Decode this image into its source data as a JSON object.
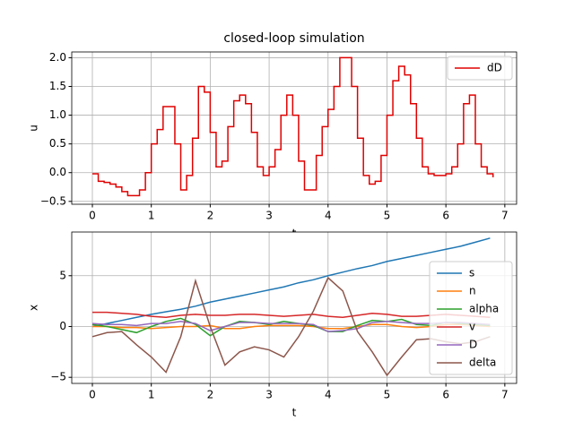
{
  "chart_data": [
    {
      "type": "line",
      "title": "closed-loop simulation",
      "xlabel": "t",
      "ylabel": "u",
      "step": "post",
      "grid": true,
      "legend": "upper right",
      "xlim": [
        -0.35,
        7.2
      ],
      "xticks": [
        0,
        1,
        2,
        3,
        4,
        5,
        6,
        7
      ],
      "ylim": [
        -0.55,
        2.1
      ],
      "yticks": [
        {
          "value": -0.5,
          "label": "−0.5"
        },
        {
          "value": 0,
          "label": "0.0"
        },
        {
          "value": 0.5,
          "label": "0.5"
        },
        {
          "value": 1,
          "label": "1.0"
        },
        {
          "value": 1.5,
          "label": "1.5"
        },
        {
          "value": 2,
          "label": "2.0"
        }
      ],
      "x": [
        0,
        0.1,
        0.2,
        0.3,
        0.4,
        0.5,
        0.6,
        0.7,
        0.8,
        0.9,
        1.0,
        1.1,
        1.2,
        1.3,
        1.4,
        1.5,
        1.6,
        1.7,
        1.8,
        1.9,
        2.0,
        2.1,
        2.2,
        2.3,
        2.4,
        2.5,
        2.6,
        2.7,
        2.8,
        2.9,
        3.0,
        3.1,
        3.2,
        3.3,
        3.4,
        3.5,
        3.6,
        3.7,
        3.8,
        3.9,
        4.0,
        4.1,
        4.2,
        4.3,
        4.4,
        4.5,
        4.6,
        4.7,
        4.8,
        4.9,
        5.0,
        5.1,
        5.2,
        5.3,
        5.4,
        5.5,
        5.6,
        5.7,
        5.8,
        5.9,
        6.0,
        6.1,
        6.2,
        6.3,
        6.4,
        6.5,
        6.6,
        6.7,
        6.8
      ],
      "series": [
        {
          "name": "dD",
          "color": "#e00000",
          "values": [
            -0.02,
            -0.15,
            -0.17,
            -0.2,
            -0.25,
            -0.33,
            -0.4,
            -0.4,
            -0.3,
            0.0,
            0.5,
            0.75,
            1.15,
            1.15,
            0.5,
            -0.3,
            -0.05,
            0.6,
            1.5,
            1.4,
            0.7,
            0.1,
            0.2,
            0.8,
            1.25,
            1.35,
            1.2,
            0.7,
            0.1,
            -0.05,
            0.1,
            0.4,
            1.0,
            1.35,
            1.0,
            0.2,
            -0.3,
            -0.3,
            0.3,
            0.8,
            1.1,
            1.5,
            2.0,
            2.0,
            1.5,
            0.6,
            -0.05,
            -0.2,
            -0.15,
            0.3,
            1.0,
            1.6,
            1.85,
            1.7,
            1.2,
            0.6,
            0.1,
            -0.02,
            -0.05,
            -0.05,
            -0.02,
            0.1,
            0.5,
            1.2,
            1.35,
            0.5,
            0.1,
            -0.02,
            -0.08
          ]
        }
      ]
    },
    {
      "type": "line",
      "xlabel": "t",
      "ylabel": "x",
      "grid": true,
      "legend": "lower right",
      "xlim": [
        -0.35,
        7.2
      ],
      "xticks": [
        0,
        1,
        2,
        3,
        4,
        5,
        6,
        7
      ],
      "ylim": [
        -5.6,
        9.3
      ],
      "yticks": [
        {
          "value": -5,
          "label": "−5"
        },
        0,
        5
      ],
      "x": [
        0,
        0.25,
        0.5,
        0.75,
        1.0,
        1.25,
        1.5,
        1.75,
        2.0,
        2.25,
        2.5,
        2.75,
        3.0,
        3.25,
        3.5,
        3.75,
        4.0,
        4.25,
        4.5,
        4.75,
        5.0,
        5.25,
        5.5,
        5.75,
        6.0,
        6.25,
        6.5,
        6.75
      ],
      "series": [
        {
          "name": "s",
          "color": "#1f77b4",
          "values": [
            0,
            0.3,
            0.6,
            0.9,
            1.2,
            1.45,
            1.7,
            2.0,
            2.4,
            2.7,
            3.0,
            3.3,
            3.6,
            3.9,
            4.3,
            4.6,
            5.0,
            5.35,
            5.7,
            6.0,
            6.4,
            6.7,
            7.0,
            7.3,
            7.6,
            7.9,
            8.3,
            8.7
          ]
        },
        {
          "name": "n",
          "color": "#ff7f0e",
          "values": [
            0,
            0,
            -0.1,
            -0.1,
            -0.2,
            -0.1,
            0,
            0,
            0.1,
            -0.2,
            -0.2,
            0,
            0.1,
            0.1,
            0.1,
            0,
            -0.2,
            -0.2,
            0,
            0.2,
            0.2,
            0,
            -0.1,
            0,
            0.2,
            0.2,
            0.1,
            0
          ]
        },
        {
          "name": "alpha",
          "color": "#2ca02c",
          "values": [
            0.2,
            0,
            -0.3,
            -0.6,
            0,
            0.5,
            0.8,
            0.2,
            -0.9,
            0,
            0.5,
            0.4,
            0.2,
            0.5,
            0.3,
            0.1,
            -0.5,
            -0.5,
            0.1,
            0.6,
            0.5,
            0.7,
            0.2,
            0.1,
            0.4,
            0.3,
            0.2,
            0.1
          ]
        },
        {
          "name": "v",
          "color": "#d62728",
          "values": [
            1.4,
            1.4,
            1.3,
            1.2,
            1.0,
            0.9,
            1.1,
            1.2,
            1.1,
            1.1,
            1.2,
            1.2,
            1.1,
            1.0,
            1.1,
            1.2,
            1.0,
            0.9,
            1.1,
            1.3,
            1.2,
            1.0,
            1.0,
            1.1,
            1.2,
            1.1,
            1.0,
            0.9
          ]
        },
        {
          "name": "D",
          "color": "#9467bd",
          "values": [
            0.3,
            0.2,
            0.2,
            0.1,
            0.3,
            0.3,
            0.5,
            0.3,
            -0.4,
            0,
            0.4,
            0.4,
            0.3,
            0.3,
            0.3,
            0.2,
            -0.5,
            -0.4,
            -0.2,
            0.4,
            0.5,
            0.4,
            0.3,
            0.3,
            0.4,
            0.4,
            0.3,
            0.2
          ]
        },
        {
          "name": "delta",
          "color": "#8c564b",
          "values": [
            -1,
            -0.6,
            -0.5,
            -1.8,
            -3,
            -4.5,
            -1,
            4.5,
            0,
            -3.8,
            -2.5,
            -2,
            -2.3,
            -3,
            -1,
            1.5,
            4.8,
            3.5,
            -0.5,
            -2.5,
            -4.8,
            -3,
            -1.3,
            -1.2,
            -1.5,
            -1.7,
            -1.5,
            -1.0
          ]
        }
      ]
    }
  ]
}
